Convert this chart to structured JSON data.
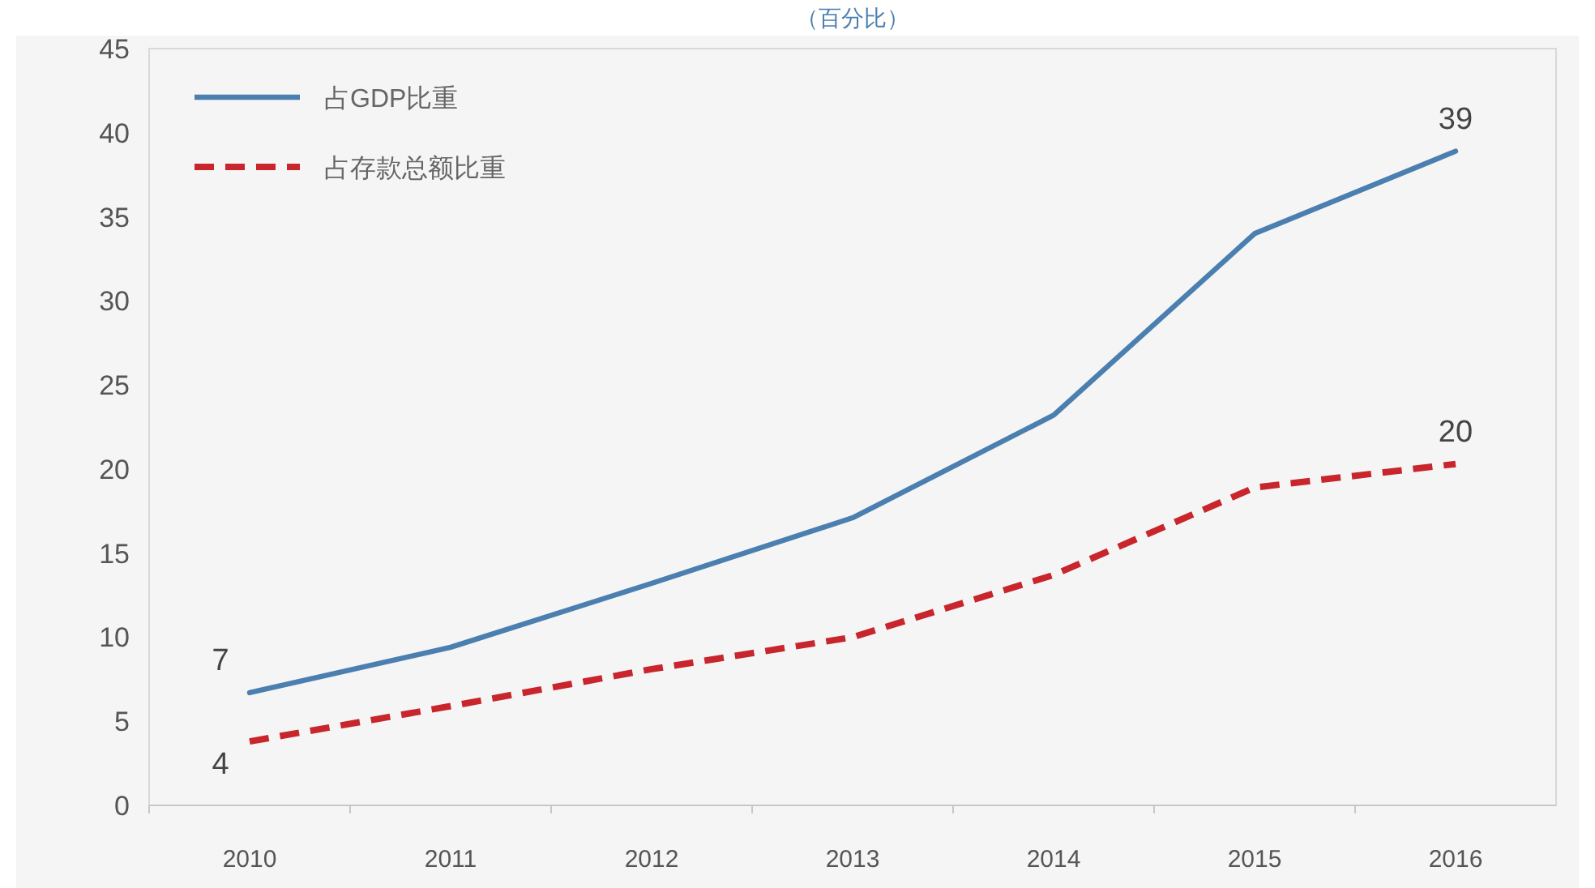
{
  "chart_data": {
    "type": "line",
    "title": "（百分比）",
    "categories": [
      "2010",
      "2011",
      "2012",
      "2013",
      "2014",
      "2015",
      "2016"
    ],
    "series": [
      {
        "name": "占GDP比重",
        "color": "#4a7fb0",
        "line_style": "solid",
        "values": [
          6.7,
          9.4,
          13.2,
          17.1,
          23.2,
          34.0,
          38.9
        ],
        "value_labels": [
          "7",
          null,
          null,
          null,
          null,
          null,
          "39"
        ]
      },
      {
        "name": "占存款总额比重",
        "color": "#c8252c",
        "line_style": "dashed",
        "values": [
          3.8,
          5.9,
          8.1,
          10.0,
          13.7,
          18.9,
          20.3
        ],
        "value_labels": [
          "4",
          null,
          null,
          null,
          null,
          null,
          "20"
        ]
      }
    ],
    "ylim": [
      0,
      45
    ],
    "yticks": [
      0,
      5,
      10,
      15,
      20,
      25,
      30,
      35,
      40,
      45
    ],
    "grid": false,
    "legend": "top left",
    "marker": "none"
  }
}
